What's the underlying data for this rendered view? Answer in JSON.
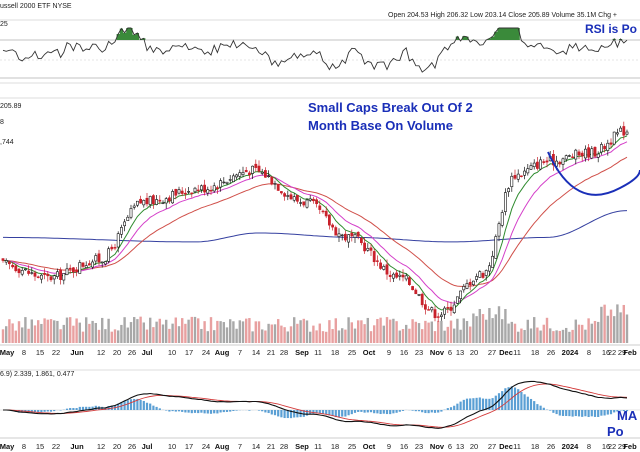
{
  "chart_data": {
    "type": "candlestick",
    "header": {
      "title_fragment": "ussell 2000 ETF  NYSE",
      "ohlc": "Open 204.53   High 206.32   Low 203.14   Close 205.89   Volume 35.1M   Chg +"
    },
    "rsi_panel": {
      "value_label": "25",
      "annotation": "RSI is Po"
    },
    "price_panel": {
      "last_price_label": "205.89",
      "partial_labels": [
        "8",
        ",744"
      ],
      "annotation_line1": "Small Caps Break Out Of 2",
      "annotation_line2": "Month Base On Volume"
    },
    "macd_panel": {
      "params_label": "6.9)  2.339,  1.861,  0.477",
      "annotation_line1": "MA",
      "annotation_line2": "Po"
    },
    "x_axis_top": [
      "May",
      "8",
      "15",
      "22",
      "Jun",
      "12",
      "20",
      "26",
      "Jul",
      "10",
      "17",
      "24",
      "Aug",
      "7",
      "14",
      "21",
      "28",
      "Sep",
      "11",
      "18",
      "25",
      "Oct",
      "9",
      "16",
      "23",
      "Nov",
      "6",
      "13",
      "20",
      "27",
      "Dec",
      "11",
      "18",
      "26",
      "2024",
      "8",
      "16",
      "22",
      "29",
      "Feb"
    ],
    "x_axis_bottom": [
      "May",
      "8",
      "15",
      "22",
      "Jun",
      "12",
      "20",
      "26",
      "Jul",
      "10",
      "17",
      "24",
      "Aug",
      "7",
      "14",
      "21",
      "28",
      "Sep",
      "11",
      "18",
      "25",
      "Oct",
      "9",
      "16",
      "23",
      "Nov",
      "6",
      "13",
      "20",
      "27",
      "Dec",
      "11",
      "18",
      "26",
      "2024",
      "8",
      "16",
      "22",
      "29",
      "Feb"
    ],
    "x_axis_bold": [
      "May",
      "Jun",
      "Jul",
      "Aug",
      "Sep",
      "Oct",
      "Nov",
      "Dec",
      "2024",
      "Feb"
    ],
    "price_range": [
      160,
      210
    ],
    "close_anchors": {
      "x": [
        0,
        14,
        30,
        44,
        62,
        78,
        94,
        108,
        124,
        136,
        150,
        160,
        170,
        184,
        195
      ],
      "y": [
        176,
        173,
        177,
        190,
        193,
        197,
        190,
        182,
        173,
        165,
        174,
        196,
        199,
        201,
        205.9
      ]
    },
    "ma_200_anchors": {
      "x": [
        0,
        60,
        80,
        110,
        140,
        170,
        195
      ],
      "y": [
        182,
        181,
        183,
        182,
        181,
        182,
        188
      ]
    },
    "colors": {
      "up_candle": "#111111",
      "down_candle": "#c8202a",
      "ma_fast": "#2e8b2e",
      "ma_mid": "#d43fc9",
      "ma_slow": "#d0504a",
      "ma_200": "#3540a0",
      "annotation": "#1a2fb8",
      "histogram": "#5a9fd4",
      "macd_line": "#111111",
      "signal_line": "#d43a3a",
      "rsi_line": "#333333",
      "rsi_over": "#3a8a3a"
    }
  }
}
